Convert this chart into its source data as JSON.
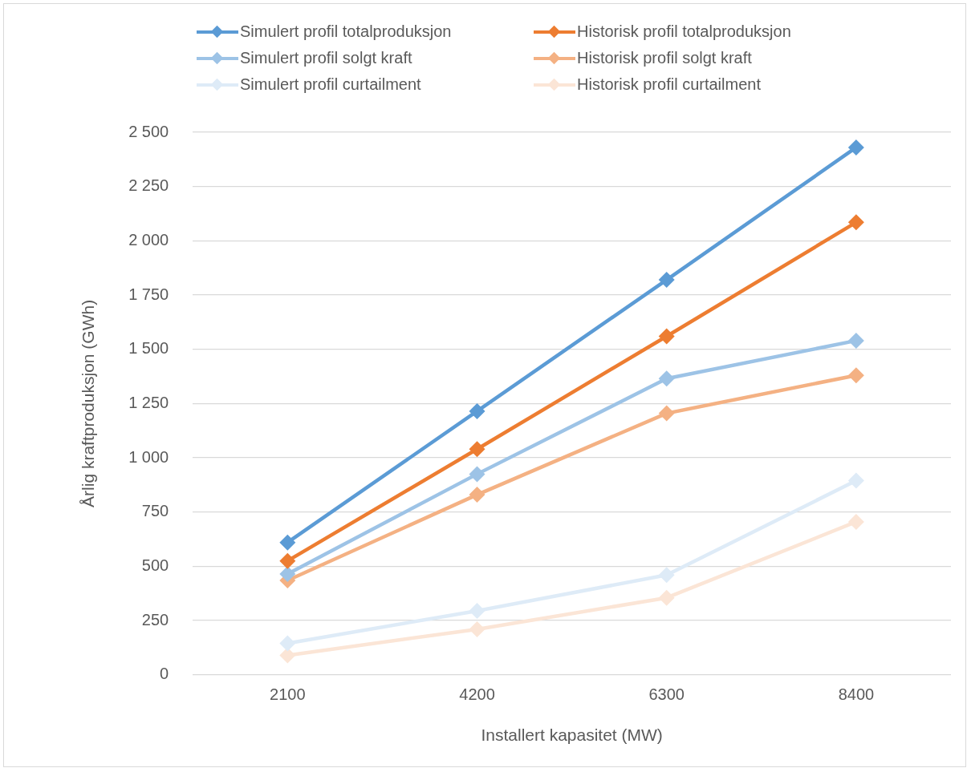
{
  "chart_data": {
    "type": "line",
    "xlabel": "Installert kapasitet (MW)",
    "ylabel": "Årlig kraftproduksjon (GWh)",
    "categories": [
      "2100",
      "4200",
      "6300",
      "8400"
    ],
    "series": [
      {
        "name": "Simulert profil totalproduksjon",
        "color": "#5b9bd5",
        "values": [
          610,
          1215,
          1820,
          2430
        ]
      },
      {
        "name": "Historisk profil totalproduksjon",
        "color": "#ed7d31",
        "values": [
          525,
          1040,
          1560,
          2085
        ]
      },
      {
        "name": "Simulert profil solgt kraft",
        "color": "#9dc3e6",
        "values": [
          465,
          925,
          1365,
          1540
        ]
      },
      {
        "name": "Historisk profil solgt kraft",
        "color": "#f4b183",
        "values": [
          435,
          830,
          1205,
          1380
        ]
      },
      {
        "name": "Simulert profil curtailment",
        "color": "#deebf7",
        "values": [
          145,
          295,
          460,
          895
        ]
      },
      {
        "name": "Historisk profil curtailment",
        "color": "#fbe5d6",
        "values": [
          90,
          210,
          355,
          705
        ]
      }
    ],
    "ylim": [
      0,
      2500
    ],
    "yticks": [
      0,
      250,
      500,
      750,
      {
        "value": 1000,
        "label": "1 000"
      },
      {
        "value": 1250,
        "label": "1 250"
      },
      {
        "value": 1500,
        "label": "1 500"
      },
      {
        "value": 1750,
        "label": "1 750"
      },
      {
        "value": 2000,
        "label": "2 000"
      },
      {
        "value": 2250,
        "label": "2 250"
      },
      {
        "value": 2500,
        "label": "2 500"
      }
    ],
    "grid": "y",
    "legend": "top",
    "marker": "diamond",
    "line_style": "solid"
  }
}
